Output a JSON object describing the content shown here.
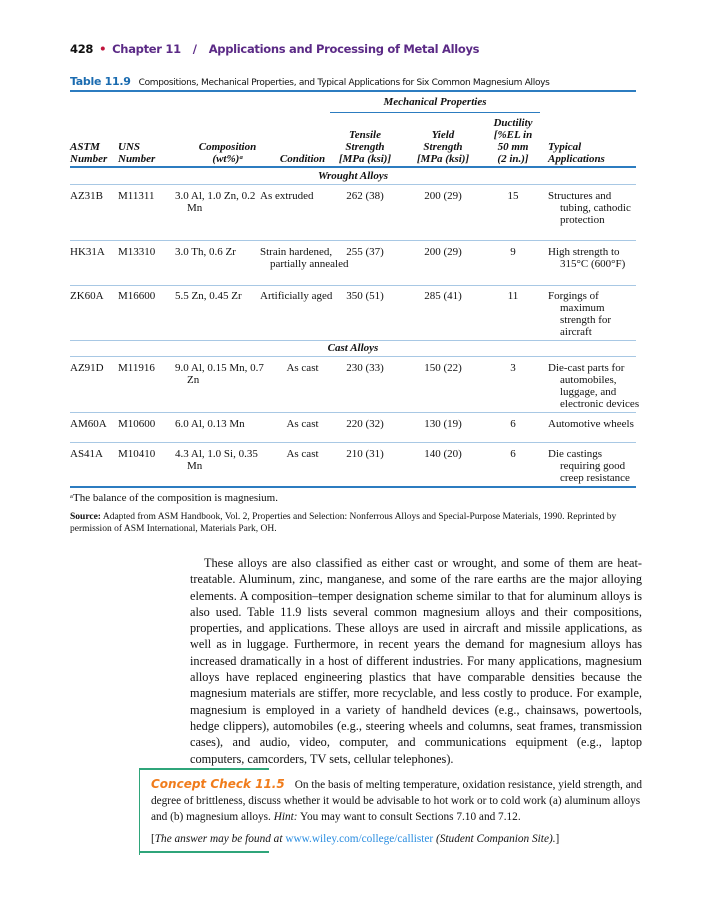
{
  "header": {
    "page": "428",
    "chapter": "Chapter 11",
    "sep": "/",
    "title": "Applications and Processing of Metal Alloys"
  },
  "table": {
    "number": "Table 11.9",
    "caption": "Compositions, Mechanical Properties, and Typical Applications for Six Common Magnesium Alloys",
    "group_header": "Mechanical Properties",
    "columns": [
      [
        "ASTM",
        "Number"
      ],
      [
        "UNS",
        "Number"
      ],
      [
        "Composition",
        "(wt%)ᵃ"
      ],
      [
        "Condition"
      ],
      [
        "Tensile",
        "Strength",
        "[MPa (ksi)]"
      ],
      [
        "Yield",
        "Strength",
        "[MPa (ksi)]"
      ],
      [
        "Ductility",
        "[%EL in",
        "50 mm",
        "(2 in.)]"
      ],
      [
        "Typical",
        "Applications"
      ]
    ],
    "sections": [
      {
        "title": "Wrought Alloys",
        "rows": [
          [
            "AZ31B",
            "M11311",
            "3.0 Al, 1.0 Zn, 0.2 Mn",
            "As extruded",
            "262 (38)",
            "200 (29)",
            "15",
            "Structures and tubing, cathodic protection"
          ],
          [
            "HK31A",
            "M13310",
            "3.0 Th, 0.6 Zr",
            "Strain hardened, partially annealed",
            "255 (37)",
            "200 (29)",
            "9",
            "High strength to 315°C (600°F)"
          ],
          [
            "ZK60A",
            "M16600",
            "5.5 Zn, 0.45 Zr",
            "Artificially aged",
            "350 (51)",
            "285 (41)",
            "11",
            "Forgings of maximum strength for aircraft"
          ]
        ]
      },
      {
        "title": "Cast Alloys",
        "rows": [
          [
            "AZ91D",
            "M11916",
            "9.0 Al, 0.15 Mn, 0.7 Zn",
            "As cast",
            "230 (33)",
            "150 (22)",
            "3",
            "Die-cast parts for automobiles, luggage, and electronic devices"
          ],
          [
            "AM60A",
            "M10600",
            "6.0 Al, 0.13 Mn",
            "As cast",
            "220 (32)",
            "130 (19)",
            "6",
            "Automotive wheels"
          ],
          [
            "AS41A",
            "M10410",
            "4.3 Al, 1.0 Si, 0.35 Mn",
            "As cast",
            "210 (31)",
            "140 (20)",
            "6",
            "Die castings requiring good creep resistance"
          ]
        ]
      }
    ],
    "footnote": "ᵃThe balance of the composition is magnesium.",
    "source_label": "Source:",
    "source": "Adapted from ASM Handbook, Vol. 2, Properties and Selection: Nonferrous Alloys and Special-Purpose Materials, 1990. Reprinted by permission of ASM International, Materials Park, OH."
  },
  "body": "These alloys are also classified as either cast or wrought, and some of them are heat-treatable. Aluminum, zinc, manganese, and some of the rare earths are the major alloying elements. A composition–temper designation scheme similar to that for aluminum alloys is also used. Table 11.9 lists several common magnesium alloys and their compositions, properties, and applications. These alloys are used in aircraft and missile applications, as well as in luggage. Furthermore, in recent years the demand for magnesium alloys has increased dramatically in a host of different industries. For many applications, magnesium alloys have replaced engineering plastics that have comparable densities because the magnesium materials are stiffer, more recyclable, and less costly to produce. For example, magnesium is employed in a variety of handheld devices (e.g., chainsaws, powertools, hedge clippers), automobiles (e.g., steering wheels and columns, seat frames, transmission cases), and audio, video, computer, and communications equipment (e.g., laptop computers, camcorders, TV sets, cellular telephones).",
  "concept_check": {
    "title": "Concept Check 11.5",
    "text": "On the basis of melting temperature, oxidation resistance, yield strength, and degree of brittleness, discuss whether it would be advisable to hot work or to cold work (a) aluminum alloys and (b) magnesium alloys.",
    "hint_label": "Hint:",
    "hint": "You may want to consult Sections 7.10 and 7.12.",
    "answer_pre": "The answer may be found at",
    "url": "www.wiley.com/college/callister",
    "answer_post": "(Student Companion Site)."
  }
}
